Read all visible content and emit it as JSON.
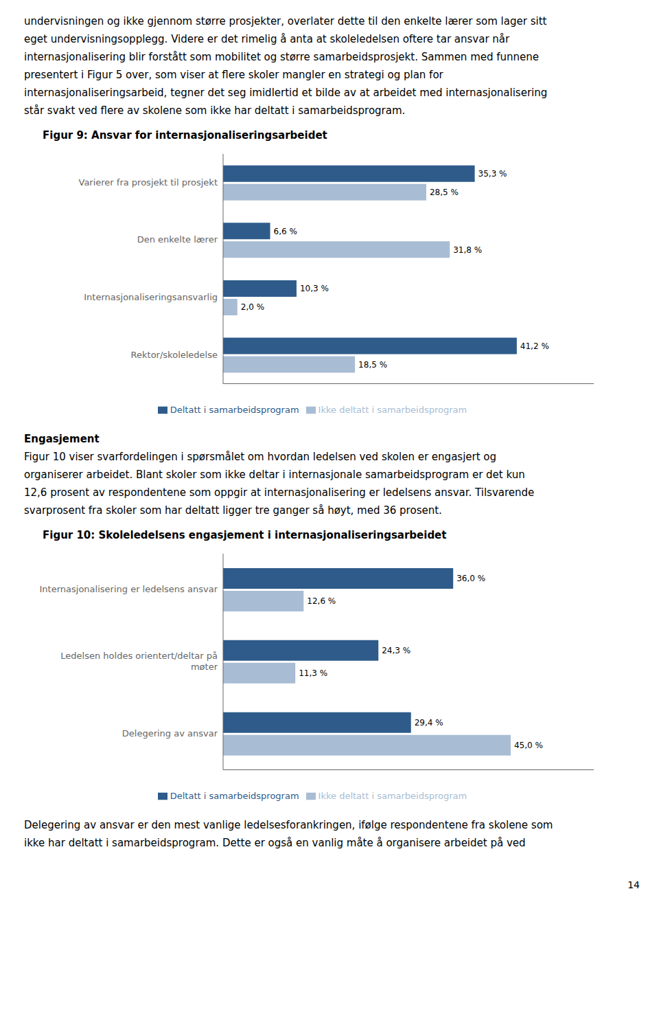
{
  "page_text": {
    "top": [
      "undervisningen og ikke gjennom større prosjekter, overlater dette til den enkelte lærer som lager sitt",
      "eget undervisningsopplegg. Videre er det rimelig å anta at skoleledelsen oftere tar ansvar når",
      "internasjonalisering blir forstått som mobilitet og større samarbeidsprosjekt. Sammen med funnene",
      "presentert i Figur 5 over, som viser at flere skoler mangler en strategi og plan for",
      "internasjonaliseringsarbeid, tegner det seg imidlertid et bilde av at arbeidet med internasjonalisering",
      "står svakt ved flere av skolene som ikke har deltatt i samarbeidsprogram."
    ],
    "middle_heading": "Engasjement",
    "middle_body": [
      "Figur 10 viser svarfordelingen i spørsmålet om hvordan ledelsen ved skolen er engasjert og",
      "organiserer arbeidet. Blant skoler som ikke deltar i internasjonale samarbeidsprogram er det kun",
      "12,6 prosent av respondentene som oppgir at internasjonalisering er ledelsens ansvar. Tilsvarende",
      "svarprosent fra skoler som har deltatt ligger tre ganger så høyt, med 36 prosent."
    ],
    "bottom": [
      "Delegering av ansvar er den mest vanlige ledelsesforankringen, ifølge respondentene fra skolene som",
      "ikke har deltatt i samarbeidsprogram. Dette er også en vanlig måte å organisere arbeidet på ved"
    ],
    "page_number": "14"
  },
  "chart_data": [
    {
      "type": "bar",
      "orientation": "horizontal",
      "title": "Figur 9: Ansvar for internasjonaliseringsarbeidet",
      "categories": [
        "Varierer fra prosjekt til prosjekt",
        "Den enkelte lærer",
        "Internasjonaliseringsansvarlig",
        "Rektor/skoleledelse"
      ],
      "series": [
        {
          "name": "Deltatt i samarbeidsprogram",
          "color": "#2E5B8A",
          "values": [
            35.3,
            6.6,
            10.3,
            41.2
          ],
          "value_labels": [
            "35,3 %",
            "6,6 %",
            "10,3 %",
            "41,2 %"
          ]
        },
        {
          "name": "Ikke deltatt i samarbeidsprogram",
          "color": "#A8BDD4",
          "values": [
            28.5,
            31.8,
            2.0,
            18.5
          ],
          "value_labels": [
            "28,5 %",
            "31,8 %",
            "2,0 %",
            "18,5 %"
          ]
        }
      ],
      "xlim": [
        0,
        52
      ],
      "data_labels": true,
      "tick_labels": "y",
      "grid": false,
      "legend": "bottom"
    },
    {
      "type": "bar",
      "orientation": "horizontal",
      "title": "Figur 10: Skoleledelsens engasjement i internasjonaliseringsarbeidet",
      "categories": [
        "Internasjonalisering er ledelsens ansvar",
        "Ledelsen holdes orientert/deltar på\nmøter",
        "Delegering av ansvar"
      ],
      "series": [
        {
          "name": "Deltatt i samarbeidsprogram",
          "color": "#2E5B8A",
          "values": [
            36.0,
            24.3,
            29.4
          ],
          "value_labels": [
            "36,0 %",
            "24,3 %",
            "29,4 %"
          ]
        },
        {
          "name": "Ikke deltatt i samarbeidsprogram",
          "color": "#A8BDD4",
          "values": [
            12.6,
            11.3,
            45.0
          ],
          "value_labels": [
            "12,6 %",
            "11,3 %",
            "45,0 %"
          ]
        }
      ],
      "xlim": [
        0,
        58
      ],
      "data_labels": true,
      "tick_labels": "y",
      "grid": false,
      "legend": "bottom"
    }
  ]
}
